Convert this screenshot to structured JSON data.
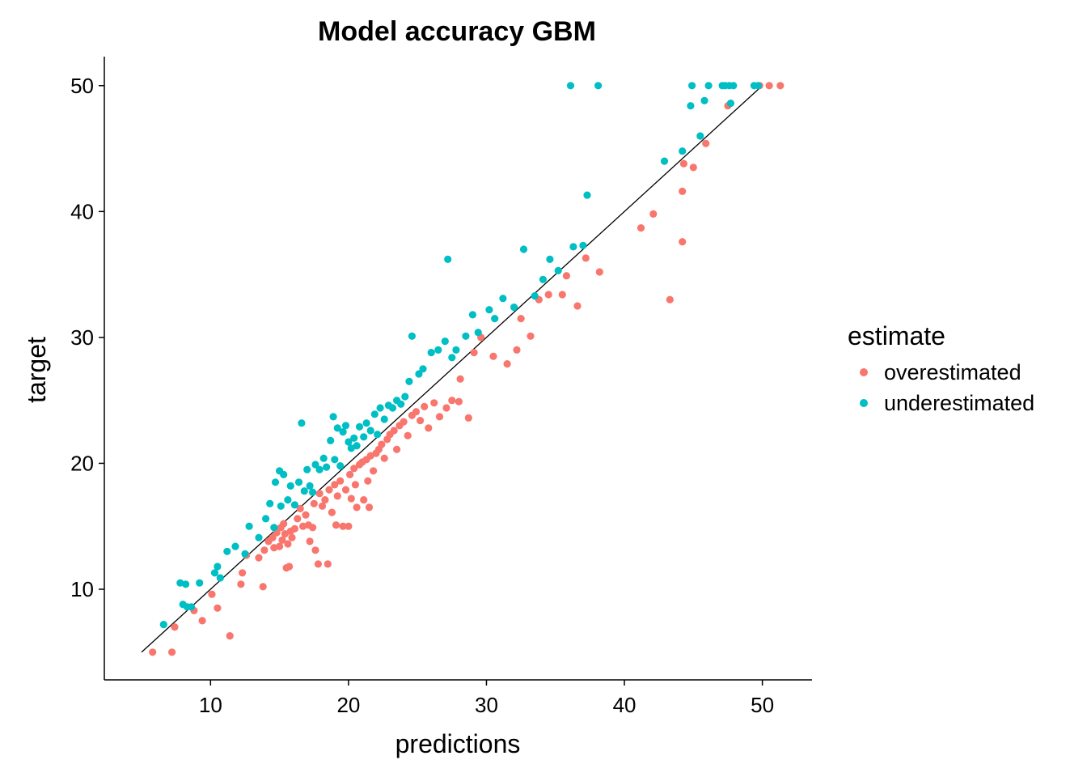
{
  "chart_data": {
    "type": "scatter",
    "title": "Model accuracy GBM",
    "xlabel": "predictions",
    "ylabel": "target",
    "xlim": [
      2.3,
      53.6
    ],
    "ylim": [
      2.8,
      52.3
    ],
    "xticks": [
      10,
      20,
      30,
      40,
      50
    ],
    "yticks": [
      10,
      20,
      30,
      40,
      50
    ],
    "grid": false,
    "legend": {
      "title": "estimate",
      "position": "right"
    },
    "reference_line": {
      "x": [
        5,
        50
      ],
      "y": [
        5,
        50
      ],
      "color": "#000000"
    },
    "series": [
      {
        "name": "overestimated",
        "color": "#F8766D",
        "points": [
          [
            5.8,
            5.0
          ],
          [
            7.2,
            5.0
          ],
          [
            7.4,
            7.0
          ],
          [
            8.8,
            8.3
          ],
          [
            9.4,
            7.5
          ],
          [
            10.1,
            9.6
          ],
          [
            10.5,
            8.5
          ],
          [
            11.4,
            6.3
          ],
          [
            12.2,
            10.4
          ],
          [
            12.3,
            11.3
          ],
          [
            12.6,
            12.7
          ],
          [
            13.5,
            12.5
          ],
          [
            13.8,
            10.2
          ],
          [
            13.9,
            13.1
          ],
          [
            14.2,
            13.8
          ],
          [
            14.5,
            14.1
          ],
          [
            14.6,
            13.3
          ],
          [
            14.8,
            14.5
          ],
          [
            15.0,
            13.4
          ],
          [
            15.1,
            14.9
          ],
          [
            15.2,
            13.9
          ],
          [
            15.3,
            15.2
          ],
          [
            15.4,
            14.4
          ],
          [
            15.5,
            11.7
          ],
          [
            15.6,
            13.6
          ],
          [
            15.7,
            11.8
          ],
          [
            15.8,
            14.6
          ],
          [
            15.9,
            14.1
          ],
          [
            16.1,
            14.8
          ],
          [
            16.3,
            15.6
          ],
          [
            16.5,
            16.4
          ],
          [
            16.7,
            15.0
          ],
          [
            16.9,
            15.9
          ],
          [
            17.1,
            15.1
          ],
          [
            17.2,
            13.8
          ],
          [
            17.4,
            14.9
          ],
          [
            17.5,
            16.8
          ],
          [
            17.6,
            13.1
          ],
          [
            17.8,
            12.0
          ],
          [
            17.9,
            17.6
          ],
          [
            18.1,
            16.6
          ],
          [
            18.3,
            17.1
          ],
          [
            18.5,
            12.0
          ],
          [
            18.6,
            17.9
          ],
          [
            18.8,
            16.1
          ],
          [
            19.0,
            18.3
          ],
          [
            19.1,
            15.1
          ],
          [
            19.2,
            17.4
          ],
          [
            19.4,
            18.6
          ],
          [
            19.6,
            15.0
          ],
          [
            19.8,
            17.9
          ],
          [
            20.0,
            15.0
          ],
          [
            20.1,
            19.1
          ],
          [
            20.2,
            17.2
          ],
          [
            20.4,
            19.6
          ],
          [
            20.5,
            18.3
          ],
          [
            20.6,
            16.5
          ],
          [
            20.8,
            19.9
          ],
          [
            21.0,
            20.1
          ],
          [
            21.1,
            17.1
          ],
          [
            21.3,
            20.3
          ],
          [
            21.4,
            18.6
          ],
          [
            21.5,
            16.5
          ],
          [
            21.6,
            20.6
          ],
          [
            21.8,
            19.4
          ],
          [
            22.0,
            20.8
          ],
          [
            22.2,
            21.1
          ],
          [
            22.4,
            21.5
          ],
          [
            22.6,
            20.4
          ],
          [
            22.8,
            21.9
          ],
          [
            23.0,
            22.3
          ],
          [
            23.3,
            22.6
          ],
          [
            23.5,
            21.1
          ],
          [
            23.7,
            23.0
          ],
          [
            24.0,
            23.3
          ],
          [
            24.3,
            22.2
          ],
          [
            24.6,
            23.8
          ],
          [
            24.9,
            24.1
          ],
          [
            25.2,
            23.4
          ],
          [
            25.5,
            24.5
          ],
          [
            25.8,
            22.8
          ],
          [
            26.2,
            24.8
          ],
          [
            26.6,
            23.7
          ],
          [
            27.1,
            24.4
          ],
          [
            27.5,
            25.0
          ],
          [
            28.0,
            24.9
          ],
          [
            28.1,
            26.7
          ],
          [
            28.7,
            23.6
          ],
          [
            29.1,
            28.8
          ],
          [
            29.6,
            30.0
          ],
          [
            30.5,
            28.5
          ],
          [
            31.5,
            27.9
          ],
          [
            32.2,
            29.0
          ],
          [
            32.5,
            31.5
          ],
          [
            33.2,
            30.1
          ],
          [
            33.8,
            33.0
          ],
          [
            34.5,
            33.4
          ],
          [
            35.5,
            33.4
          ],
          [
            35.8,
            34.9
          ],
          [
            36.6,
            32.5
          ],
          [
            37.2,
            36.3
          ],
          [
            38.2,
            35.2
          ],
          [
            41.2,
            38.7
          ],
          [
            42.1,
            39.8
          ],
          [
            43.3,
            33.0
          ],
          [
            44.2,
            37.6
          ],
          [
            44.2,
            41.6
          ],
          [
            44.3,
            43.8
          ],
          [
            45.0,
            43.5
          ],
          [
            45.9,
            45.4
          ],
          [
            47.5,
            48.4
          ],
          [
            49.8,
            50.0
          ],
          [
            50.5,
            50.0
          ],
          [
            51.3,
            50.0
          ]
        ]
      },
      {
        "name": "underestimated",
        "color": "#00BFC4",
        "points": [
          [
            6.6,
            7.2
          ],
          [
            7.8,
            10.5
          ],
          [
            8.0,
            8.8
          ],
          [
            8.2,
            10.4
          ],
          [
            8.3,
            8.6
          ],
          [
            8.6,
            8.6
          ],
          [
            9.2,
            10.5
          ],
          [
            10.3,
            11.3
          ],
          [
            10.5,
            11.8
          ],
          [
            10.7,
            10.9
          ],
          [
            11.2,
            13.0
          ],
          [
            11.8,
            13.4
          ],
          [
            12.5,
            12.8
          ],
          [
            12.8,
            15.0
          ],
          [
            13.5,
            14.1
          ],
          [
            14.0,
            15.6
          ],
          [
            14.3,
            16.8
          ],
          [
            14.6,
            14.9
          ],
          [
            14.7,
            18.5
          ],
          [
            15.0,
            19.4
          ],
          [
            15.1,
            16.6
          ],
          [
            15.3,
            19.1
          ],
          [
            15.6,
            17.1
          ],
          [
            15.8,
            18.2
          ],
          [
            16.1,
            16.7
          ],
          [
            16.4,
            18.5
          ],
          [
            16.6,
            23.2
          ],
          [
            16.8,
            17.8
          ],
          [
            17.0,
            19.5
          ],
          [
            17.2,
            18.2
          ],
          [
            17.4,
            17.7
          ],
          [
            17.6,
            19.9
          ],
          [
            17.9,
            19.5
          ],
          [
            18.2,
            20.4
          ],
          [
            18.4,
            19.7
          ],
          [
            18.7,
            21.8
          ],
          [
            18.9,
            23.7
          ],
          [
            19.0,
            20.3
          ],
          [
            19.2,
            22.8
          ],
          [
            19.4,
            19.8
          ],
          [
            19.6,
            22.5
          ],
          [
            19.8,
            23.0
          ],
          [
            20.0,
            21.7
          ],
          [
            20.2,
            21.2
          ],
          [
            20.4,
            22.0
          ],
          [
            20.6,
            21.4
          ],
          [
            20.8,
            22.9
          ],
          [
            21.1,
            22.1
          ],
          [
            21.3,
            23.2
          ],
          [
            21.6,
            22.6
          ],
          [
            21.9,
            23.9
          ],
          [
            22.1,
            22.3
          ],
          [
            22.3,
            24.4
          ],
          [
            22.6,
            23.5
          ],
          [
            22.9,
            24.6
          ],
          [
            23.2,
            24.4
          ],
          [
            23.5,
            25.0
          ],
          [
            23.8,
            24.7
          ],
          [
            24.1,
            25.3
          ],
          [
            24.4,
            26.5
          ],
          [
            24.6,
            30.1
          ],
          [
            25.1,
            27.1
          ],
          [
            25.4,
            27.5
          ],
          [
            26.0,
            28.8
          ],
          [
            26.5,
            29.0
          ],
          [
            27.0,
            29.7
          ],
          [
            27.2,
            36.2
          ],
          [
            27.5,
            28.4
          ],
          [
            27.8,
            29.0
          ],
          [
            28.5,
            30.1
          ],
          [
            29.0,
            31.8
          ],
          [
            29.4,
            30.4
          ],
          [
            30.2,
            32.2
          ],
          [
            30.6,
            31.5
          ],
          [
            31.2,
            33.1
          ],
          [
            32.0,
            32.4
          ],
          [
            32.7,
            37.0
          ],
          [
            33.5,
            33.3
          ],
          [
            34.1,
            34.6
          ],
          [
            34.6,
            36.2
          ],
          [
            35.2,
            35.3
          ],
          [
            36.3,
            37.2
          ],
          [
            37.0,
            37.3
          ],
          [
            37.3,
            41.3
          ],
          [
            36.1,
            50.0
          ],
          [
            38.1,
            50.0
          ],
          [
            42.9,
            44.0
          ],
          [
            44.2,
            44.8
          ],
          [
            44.8,
            48.4
          ],
          [
            44.9,
            50.0
          ],
          [
            45.5,
            46.0
          ],
          [
            45.8,
            48.8
          ],
          [
            46.1,
            50.0
          ],
          [
            47.1,
            50.0
          ],
          [
            47.3,
            50.0
          ],
          [
            47.6,
            50.0
          ],
          [
            47.7,
            48.6
          ],
          [
            47.9,
            50.0
          ],
          [
            49.4,
            50.0
          ],
          [
            49.7,
            50.0
          ]
        ]
      }
    ]
  }
}
